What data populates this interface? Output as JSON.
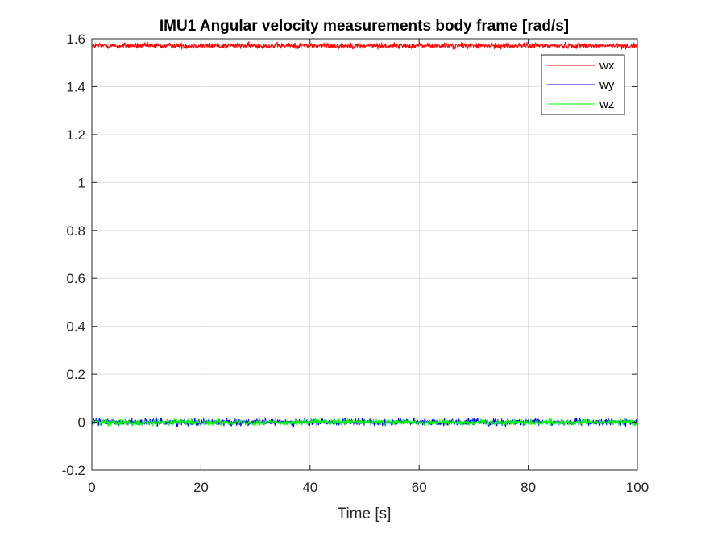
{
  "chart_data": {
    "type": "line",
    "title": "IMU1 Angular velocity measurements body frame [rad/s]",
    "xlabel": "Time [s]",
    "ylabel": "",
    "xlim": [
      0,
      100
    ],
    "ylim": [
      -0.2,
      1.6
    ],
    "x_ticks": [
      0,
      20,
      40,
      60,
      80,
      100
    ],
    "x_tick_labels": [
      "0",
      "20",
      "40",
      "60",
      "80",
      "100"
    ],
    "y_ticks": [
      -0.2,
      0,
      0.2,
      0.4,
      0.6,
      0.8,
      1,
      1.2,
      1.4,
      1.6
    ],
    "y_tick_labels": [
      "-0.2",
      "0",
      "0.2",
      "0.4",
      "0.6",
      "0.8",
      "1",
      "1.2",
      "1.4",
      "1.6"
    ],
    "grid": true,
    "legend_position": "top-right",
    "series": [
      {
        "name": "wx",
        "color": "#ff0000",
        "mean": 1.5708,
        "noise_amplitude": 0.006
      },
      {
        "name": "wy",
        "color": "#0000ff",
        "mean": 0.0,
        "noise_amplitude": 0.007
      },
      {
        "name": "wz",
        "color": "#00ff00",
        "mean": 0.0,
        "noise_amplitude": 0.006
      }
    ]
  }
}
